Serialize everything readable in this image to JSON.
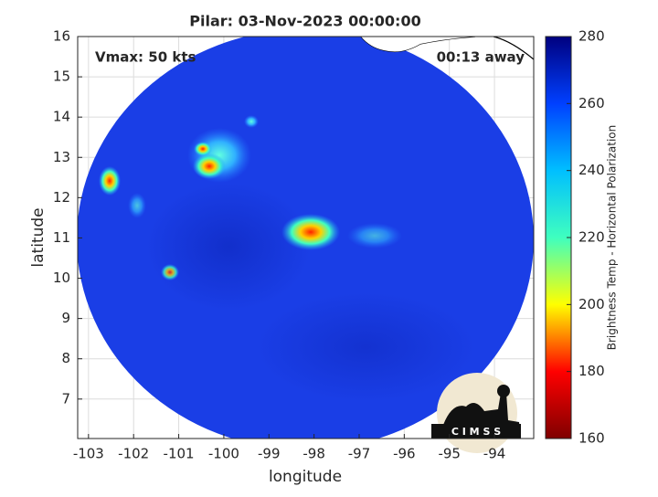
{
  "chart_data": {
    "type": "image-map",
    "title": "Pilar: 03-Nov-2023 00:00:00",
    "annotations": [
      "Vmax: 50 kts",
      "00:13 away"
    ],
    "xlabel": "longitude",
    "ylabel": "latitude",
    "xlim": [
      -103.24,
      -93.13
    ],
    "ylim": [
      6.02,
      16
    ],
    "xticks": [
      -103,
      -102,
      -101,
      -100,
      -99,
      -98,
      -97,
      -96,
      -95,
      -94
    ],
    "yticks": [
      7,
      8,
      9,
      10,
      11,
      12,
      13,
      14,
      15,
      16
    ],
    "grid": true,
    "colorbar": {
      "label": "Brightness Temp - Horizontal Polarization",
      "lim": [
        160,
        280
      ],
      "ticks": [
        160,
        180,
        200,
        220,
        240,
        260,
        280
      ],
      "colors": [
        "#7f0000",
        "#ff0000",
        "#ffff00",
        "#3fffbf",
        "#00bfff",
        "#0040ff",
        "#00007f"
      ]
    },
    "logo_text": "C I M S S"
  }
}
